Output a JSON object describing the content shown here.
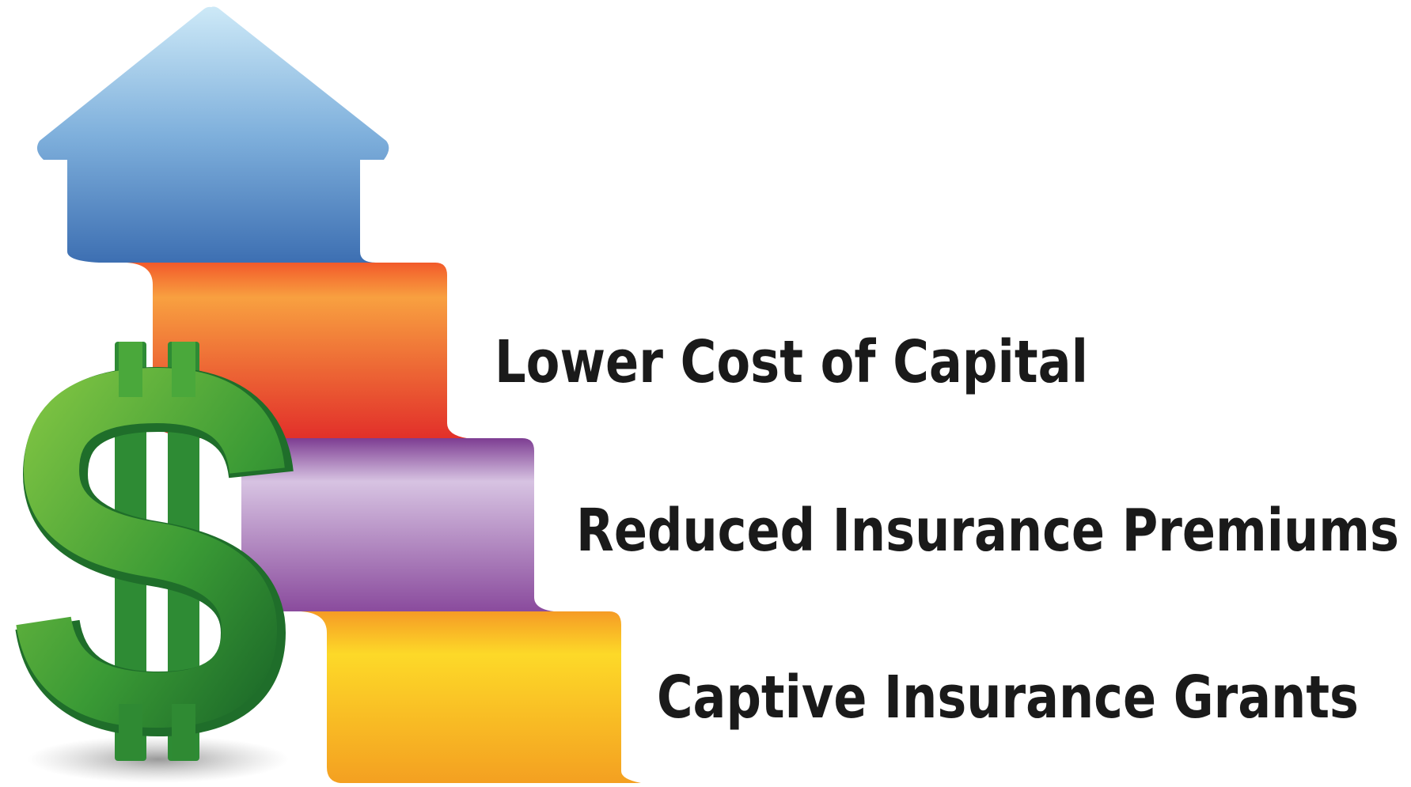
{
  "steps": [
    {
      "label": "Lower Cost of Capital"
    },
    {
      "label": "Reduced Insurance Premiums"
    },
    {
      "label": "Captive Insurance Grants"
    }
  ]
}
